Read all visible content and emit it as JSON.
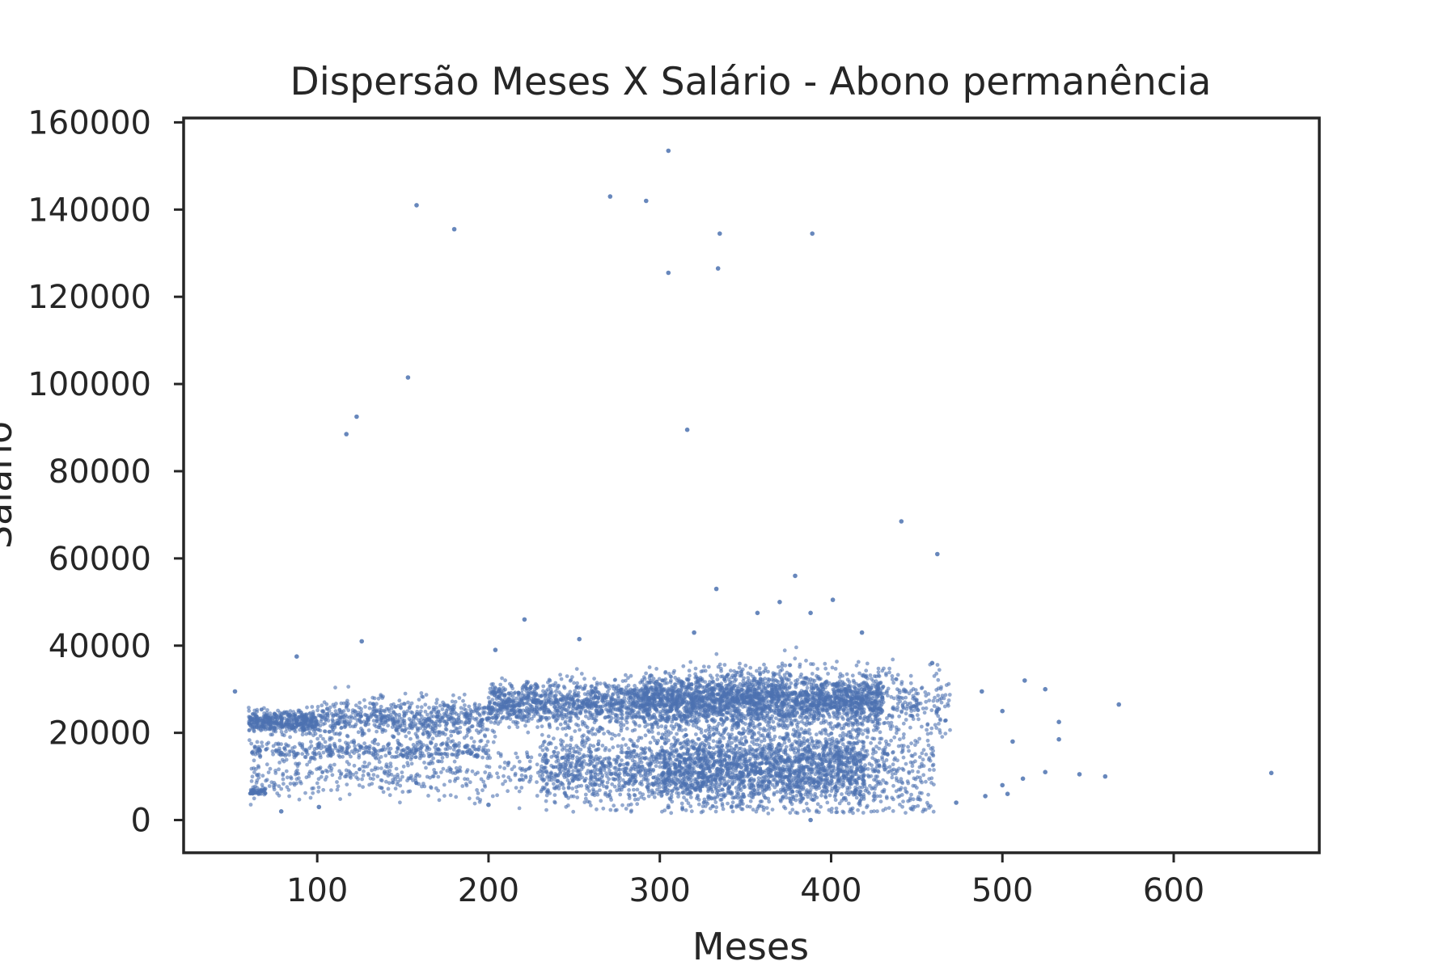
{
  "chart_data": {
    "type": "scatter",
    "title": "Dispersão Meses X Salário - Abono permanência",
    "xlabel": "Meses",
    "ylabel": "Salário",
    "xlim": [
      22,
      685
    ],
    "ylim": [
      -7500,
      161000
    ],
    "xticks": [
      100,
      200,
      300,
      400,
      500,
      600
    ],
    "yticks": [
      0,
      20000,
      40000,
      60000,
      80000,
      100000,
      120000,
      140000,
      160000
    ],
    "grid": false,
    "legend": "none",
    "marker_color": "#4c72b0",
    "outlier_points": [
      {
        "x": 305,
        "y": 153500
      },
      {
        "x": 271,
        "y": 143000
      },
      {
        "x": 158,
        "y": 141000
      },
      {
        "x": 292,
        "y": 142000
      },
      {
        "x": 180,
        "y": 135500
      },
      {
        "x": 335,
        "y": 134500
      },
      {
        "x": 389,
        "y": 134500
      },
      {
        "x": 334,
        "y": 126500
      },
      {
        "x": 305,
        "y": 125500
      },
      {
        "x": 153,
        "y": 101500
      },
      {
        "x": 123,
        "y": 92500
      },
      {
        "x": 117,
        "y": 88500
      },
      {
        "x": 316,
        "y": 89500
      },
      {
        "x": 441,
        "y": 68500
      },
      {
        "x": 462,
        "y": 61000
      },
      {
        "x": 379,
        "y": 56000
      },
      {
        "x": 333,
        "y": 53000
      },
      {
        "x": 401,
        "y": 50500
      },
      {
        "x": 370,
        "y": 50000
      },
      {
        "x": 221,
        "y": 46000
      },
      {
        "x": 357,
        "y": 47500
      },
      {
        "x": 388,
        "y": 47500
      },
      {
        "x": 253,
        "y": 41500
      },
      {
        "x": 126,
        "y": 41000
      },
      {
        "x": 320,
        "y": 43000
      },
      {
        "x": 418,
        "y": 43000
      },
      {
        "x": 88,
        "y": 37500
      },
      {
        "x": 204,
        "y": 39000
      },
      {
        "x": 657,
        "y": 10800
      },
      {
        "x": 568,
        "y": 26500
      },
      {
        "x": 560,
        "y": 10000
      },
      {
        "x": 545,
        "y": 10500
      },
      {
        "x": 533,
        "y": 22500
      },
      {
        "x": 533,
        "y": 18500
      },
      {
        "x": 525,
        "y": 30000
      },
      {
        "x": 525,
        "y": 11000
      },
      {
        "x": 513,
        "y": 32000
      },
      {
        "x": 512,
        "y": 9500
      },
      {
        "x": 506,
        "y": 18000
      },
      {
        "x": 500,
        "y": 25000
      },
      {
        "x": 500,
        "y": 8000
      },
      {
        "x": 503,
        "y": 6000
      },
      {
        "x": 490,
        "y": 5500
      },
      {
        "x": 488,
        "y": 29500
      },
      {
        "x": 473,
        "y": 4000
      },
      {
        "x": 79,
        "y": 2000
      },
      {
        "x": 101,
        "y": 3000
      },
      {
        "x": 200,
        "y": 3500
      },
      {
        "x": 388,
        "y": 0
      },
      {
        "x": 52,
        "y": 29500
      },
      {
        "x": 459,
        "y": 36000
      }
    ],
    "point_clouds": [
      {
        "x_range": [
          60,
          100
        ],
        "y_center": 22500,
        "y_spread": 1200,
        "count": 450
      },
      {
        "x_range": [
          100,
          200
        ],
        "y_center": 23000,
        "y_spread": 2400,
        "count": 650
      },
      {
        "x_range": [
          200,
          290
        ],
        "y_center": 26500,
        "y_spread": 2600,
        "count": 1000
      },
      {
        "x_range": [
          290,
          430
        ],
        "y_center": 27500,
        "y_spread": 3200,
        "count": 2600
      },
      {
        "x_range": [
          430,
          470
        ],
        "y_center": 27000,
        "y_spread": 3500,
        "count": 180
      },
      {
        "x_range": [
          60,
          200
        ],
        "y_center": 16000,
        "y_spread": 1000,
        "count": 380
      },
      {
        "x_range": [
          60,
          230
        ],
        "y_center": 10000,
        "y_spread": 2500,
        "count": 380
      },
      {
        "x_range": [
          230,
          300
        ],
        "y_center": 12000,
        "y_spread": 4000,
        "count": 700
      },
      {
        "x_range": [
          300,
          420
        ],
        "y_center": 12000,
        "y_spread": 4500,
        "count": 2300
      },
      {
        "x_range": [
          420,
          460
        ],
        "y_center": 11000,
        "y_spread": 5000,
        "count": 250
      },
      {
        "x_range": [
          60,
          70
        ],
        "y_center": 6500,
        "y_spread": 400,
        "count": 50
      }
    ]
  }
}
